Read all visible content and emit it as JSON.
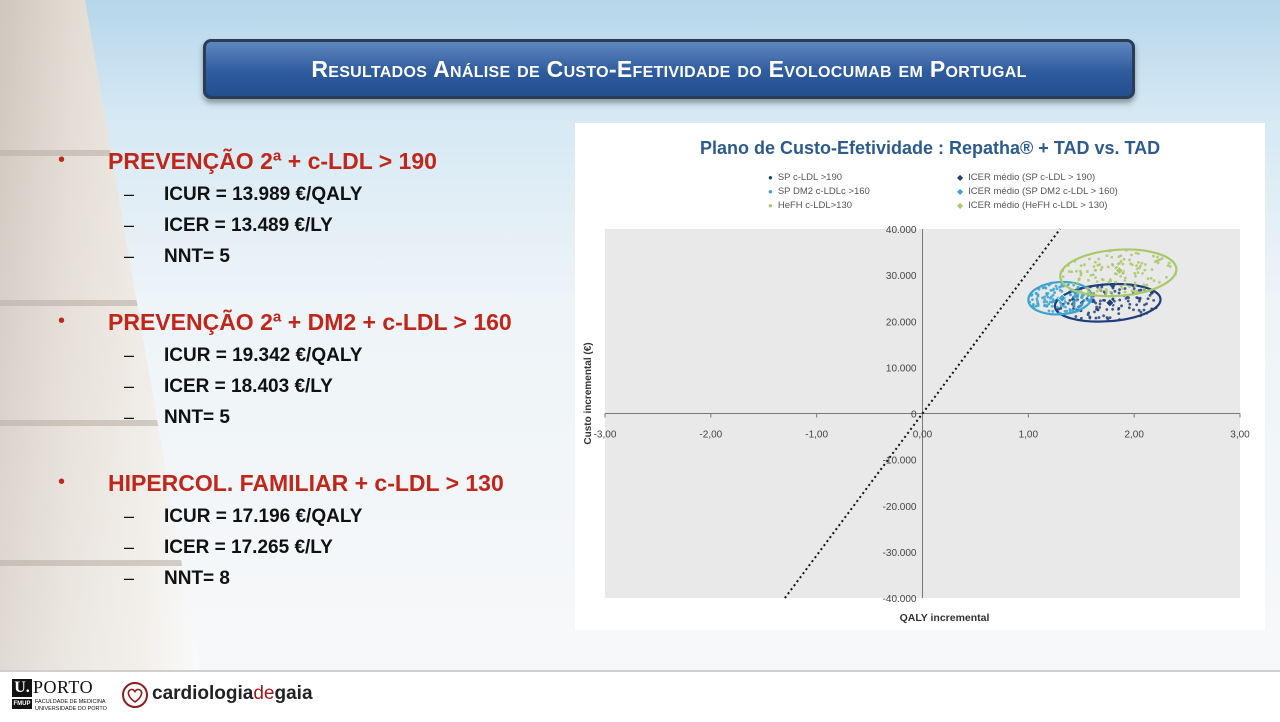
{
  "slide": {
    "title": "Resultados Análise de Custo-Efetividade do Evolocumab em Portugal"
  },
  "groups": [
    {
      "heading": "PREVENÇÃO 2ª +  c-LDL > 190",
      "items": [
        "ICUR = 13.989 €/QALY",
        "ICER = 13.489 €/LY",
        "NNT= 5"
      ]
    },
    {
      "heading": "PREVENÇÃO 2ª + DM2 + c-LDL > 160",
      "items": [
        "ICUR = 19.342 €/QALY",
        "ICER = 18.403 €/LY",
        "NNT= 5"
      ]
    },
    {
      "heading": "HIPERCOL. FAMILIAR + c-LDL > 130",
      "items": [
        "ICUR = 17.196 €/QALY",
        "ICER = 17.265 €/LY",
        "NNT= 8"
      ]
    }
  ],
  "colors": {
    "heading_red": "#c0271b",
    "title_blue": "#2f5c9e",
    "series_sp": "#1f3f7a",
    "series_dm2": "#3aa3cf",
    "series_hefh": "#a9c86a"
  },
  "chart_data": {
    "type": "scatter",
    "title": "Plano de Custo-Efetividade : Repatha® + TAD vs. TAD",
    "xlabel": "QALY incremental",
    "ylabel": "Custo incremental (€)",
    "xlim": [
      -3,
      3
    ],
    "ylim": [
      -40000,
      40000
    ],
    "x_ticks": [
      "-3,00",
      "-2,00",
      "-1,00",
      "0,00",
      "1,00",
      "2,00",
      "3,00"
    ],
    "y_ticks": [
      "-40.000",
      "-30.000",
      "-20.000",
      "-10.000",
      "0",
      "10.000",
      "20.000",
      "30.000",
      "40.000"
    ],
    "legend_position": "top",
    "legend": [
      {
        "label": "SP c-LDL >190",
        "marker": "dot",
        "color": "#1f3f7a"
      },
      {
        "label": "ICER médio (SP c-LDL > 190)",
        "marker": "diamond",
        "color": "#1f3f7a"
      },
      {
        "label": "SP DM2 c-LDLc >160",
        "marker": "dot",
        "color": "#3aa3cf"
      },
      {
        "label": "ICER médio (SP DM2 c-LDL > 160)",
        "marker": "diamond",
        "color": "#3aa3cf"
      },
      {
        "label": "HeFH c-LDL>130",
        "marker": "dot",
        "color": "#a9c86a"
      },
      {
        "label": "ICER médio (HeFH c-LDL > 130)",
        "marker": "diamond",
        "color": "#a9c86a"
      }
    ],
    "clouds": [
      {
        "name": "SP c-LDL >190",
        "center": [
          1.75,
          24000
        ],
        "spread": [
          0.5,
          4000
        ],
        "color": "#1f3f7a",
        "mean": [
          1.77,
          24000
        ]
      },
      {
        "name": "SP DM2 c-LDLc >160",
        "center": [
          1.3,
          25000
        ],
        "spread": [
          0.3,
          3500
        ],
        "color": "#3aa3cf",
        "mean": [
          1.32,
          25000
        ]
      },
      {
        "name": "HeFH c-LDL>130",
        "center": [
          1.85,
          30500
        ],
        "spread": [
          0.55,
          5000
        ],
        "color": "#a9c86a",
        "mean": [
          1.86,
          31000
        ]
      }
    ],
    "threshold_line": [
      [
        -1.3,
        -40000
      ],
      [
        1.3,
        40000
      ]
    ],
    "grid": false
  },
  "footer": {
    "uporto_mark": "U.",
    "uporto_name": "PORTO",
    "fmup": "FMUP",
    "faculty_line1": "FACULDADE DE MEDICINA",
    "faculty_line2": "UNIVERSIDADE DO PORTO",
    "brand_part1": "cardiologia",
    "brand_part2": "de",
    "brand_part3": "gaia"
  }
}
